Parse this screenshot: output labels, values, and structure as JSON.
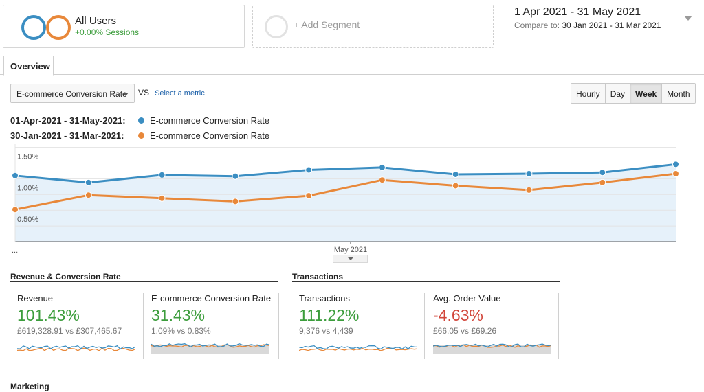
{
  "segments": {
    "all_users": {
      "name": "All Users",
      "sessions_change": "+0.00% Sessions",
      "colors": [
        "#3b8ec2",
        "#e8883a"
      ]
    },
    "add_segment_label": "+ Add Segment"
  },
  "date_range": {
    "primary": "1 Apr 2021 - 31 May 2021",
    "compare_label": "Compare to:",
    "compare_range": "30 Jan 2021 - 31 Mar 2021"
  },
  "tabs": [
    {
      "label": "Overview",
      "active": true
    }
  ],
  "metric_selector": {
    "selected": "E-commerce Conversion Rate",
    "vs_label": "VS",
    "select_metric_link": "Select a metric"
  },
  "time_granularity": {
    "options": [
      "Hourly",
      "Day",
      "Week",
      "Month"
    ],
    "active": "Week"
  },
  "legend": [
    {
      "range": "01-Apr-2021 - 31-May-2021:",
      "metric": "E-commerce Conversion Rate",
      "color": "#3b8ec2"
    },
    {
      "range": "30-Jan-2021 - 31-Mar-2021:",
      "metric": "E-commerce Conversion Rate",
      "color": "#e8883a"
    }
  ],
  "chart_data": {
    "type": "line",
    "y_tick_labels": [
      "1.50%",
      "1.00%",
      "0.50%"
    ],
    "y_ticks": [
      1.5,
      1.0,
      0.5
    ],
    "ylim": [
      0.0,
      1.55
    ],
    "x_labels": [
      "May 2021"
    ],
    "x_start_label": "...",
    "grid": true,
    "colors": {
      "current": "#3b8ec2",
      "previous": "#e8883a",
      "fill": "#e6f1fa"
    },
    "series": [
      {
        "name": "01-Apr-2021 - 31-May-2021",
        "values": [
          1.05,
          0.94,
          1.06,
          1.04,
          1.14,
          1.18,
          1.07,
          1.08,
          1.1,
          1.23
        ]
      },
      {
        "name": "30-Jan-2021 - 31-Mar-2021",
        "values": [
          0.51,
          0.74,
          0.69,
          0.64,
          0.73,
          0.98,
          0.89,
          0.82,
          0.94,
          1.08
        ]
      }
    ]
  },
  "sections": {
    "revenue_conversion": {
      "title": "Revenue & Conversion Rate"
    },
    "transactions": {
      "title": "Transactions"
    },
    "marketing": {
      "title": "Marketing"
    }
  },
  "metrics": [
    {
      "name": "Revenue",
      "change": "101.43%",
      "change_color": "#3c9d3c",
      "compare": "£619,328.91 vs £307,465.67",
      "spark_style": "normal"
    },
    {
      "name": "E-commerce Conversion Rate",
      "change": "31.43%",
      "change_color": "#3c9d3c",
      "compare": "1.09% vs 0.83%",
      "spark_style": "filled"
    },
    {
      "name": "Transactions",
      "change": "111.22%",
      "change_color": "#3c9d3c",
      "compare": "9,376 vs 4,439",
      "spark_style": "normal"
    },
    {
      "name": "Avg. Order Value",
      "change": "-4.63%",
      "change_color": "#d2453a",
      "compare": "£66.05 vs £69.26",
      "spark_style": "filled"
    }
  ]
}
